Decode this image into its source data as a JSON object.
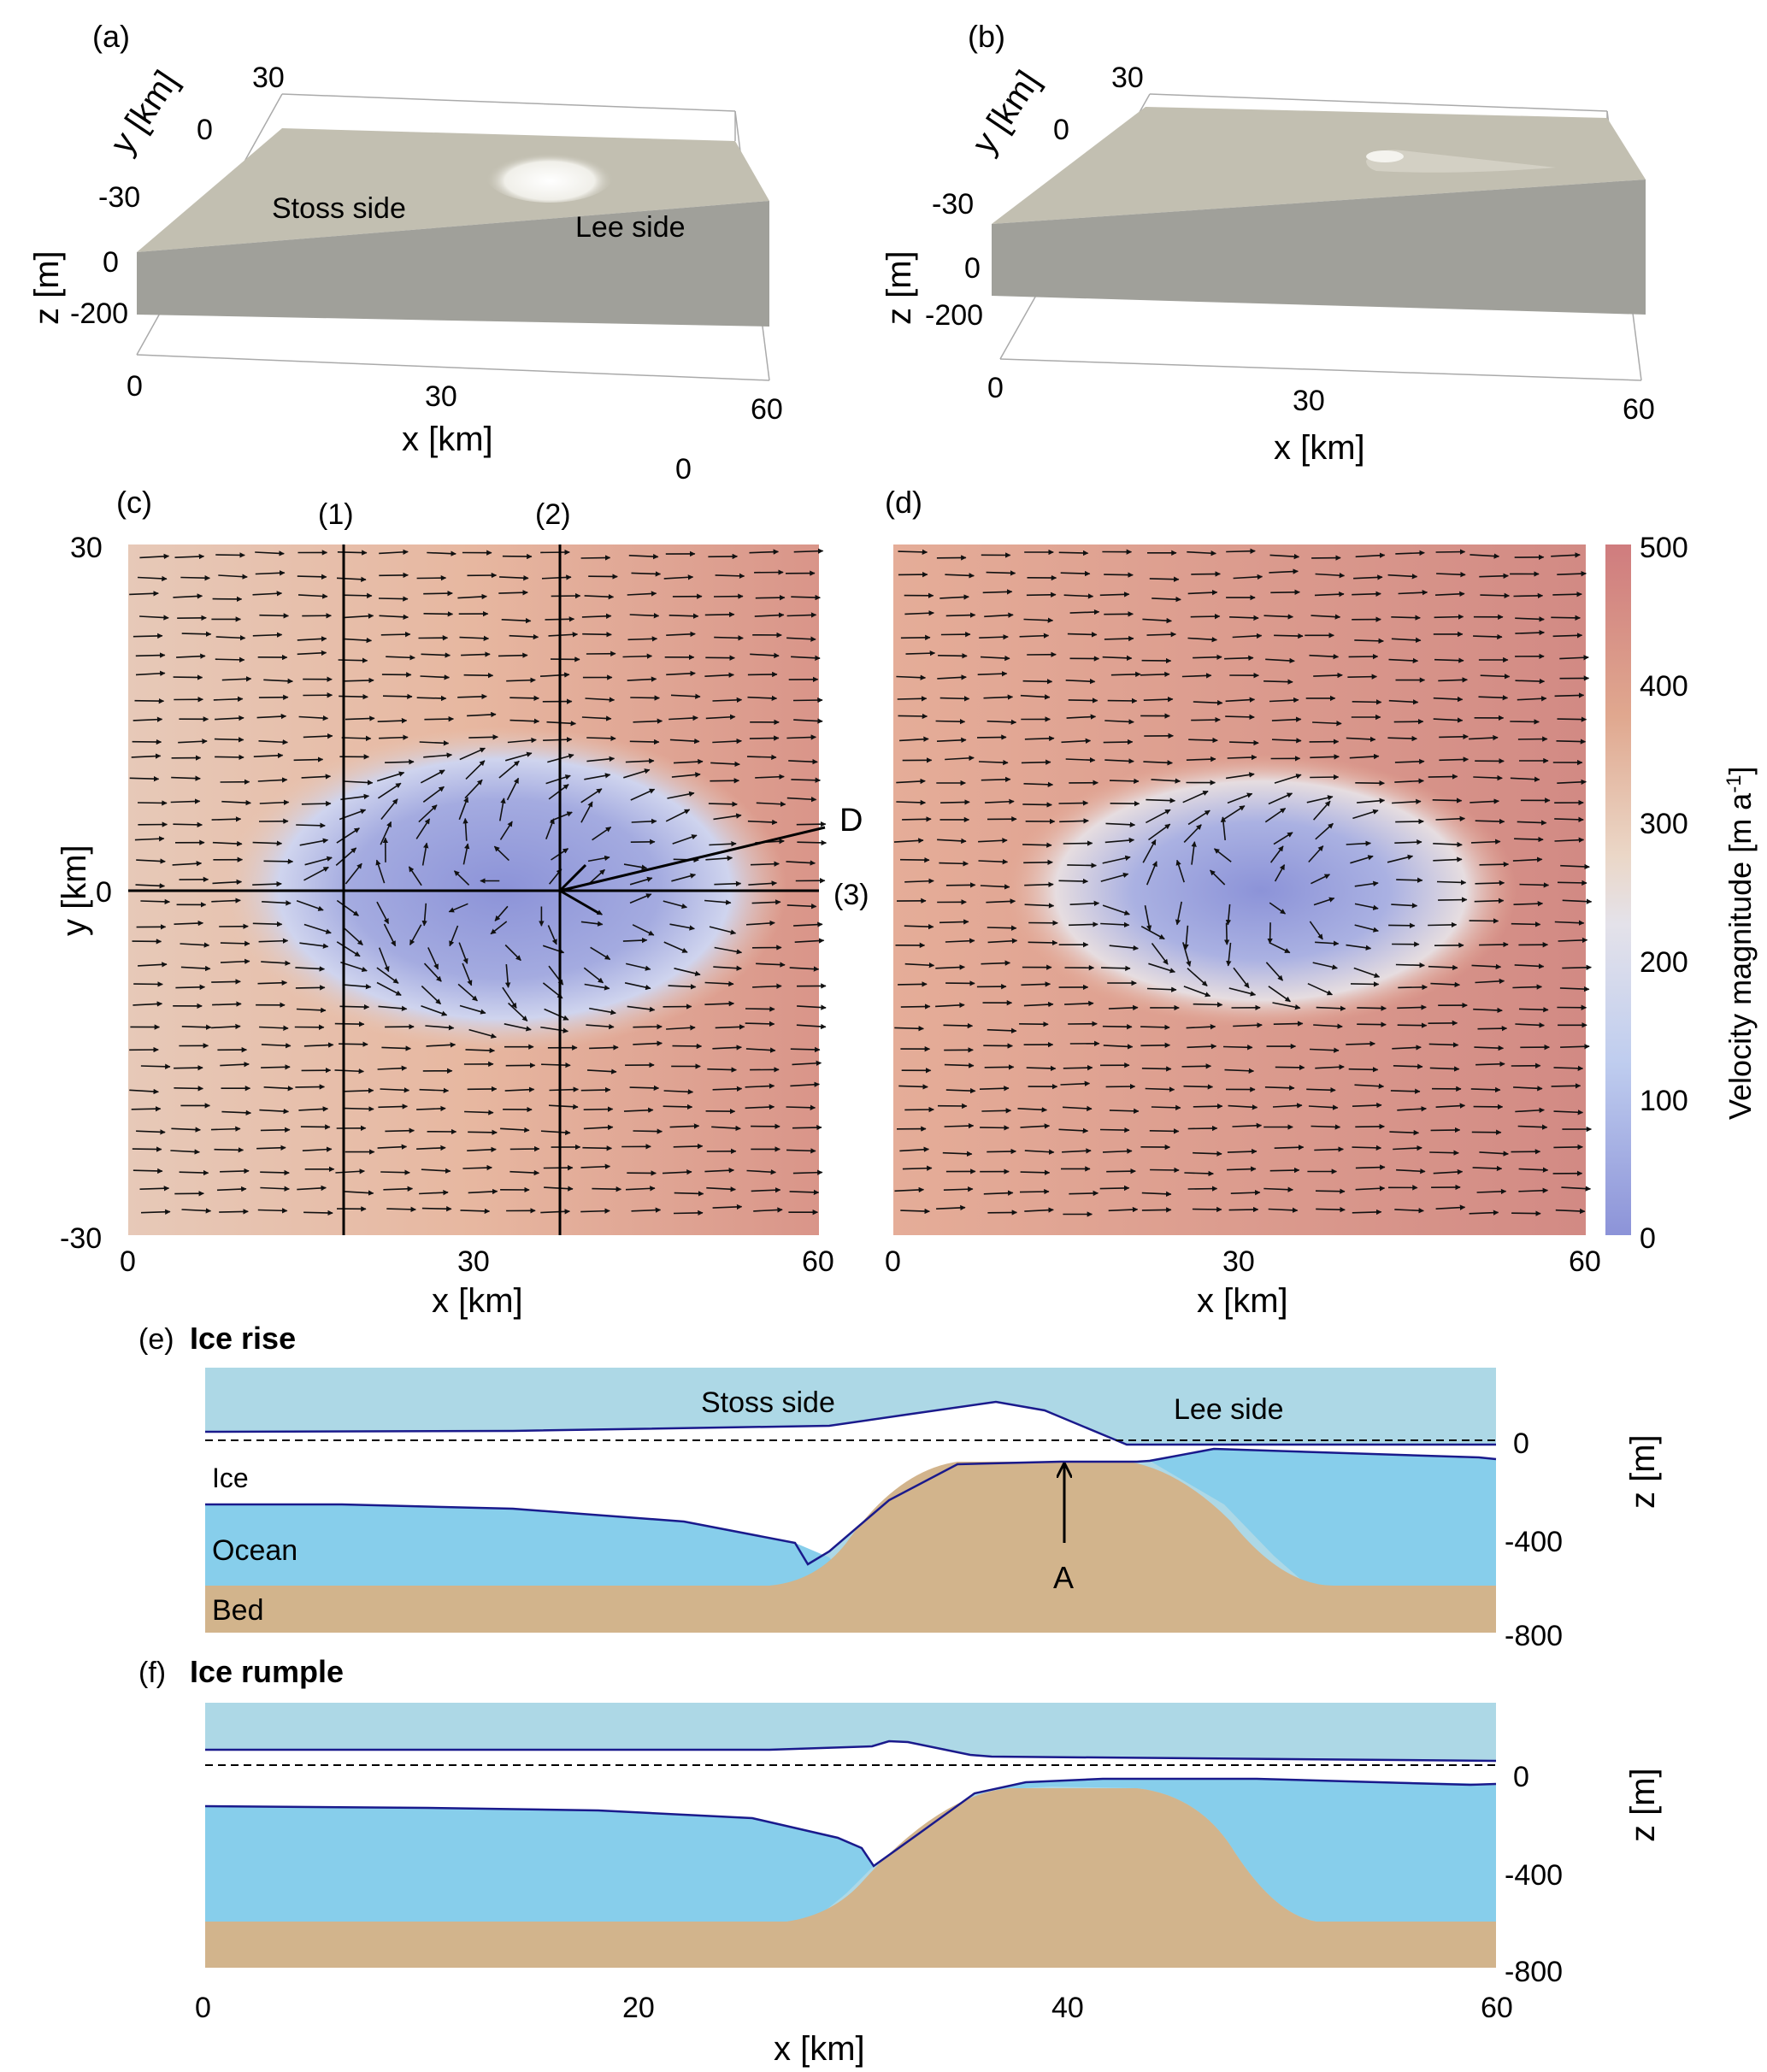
{
  "panel_a": {
    "label": "(a)",
    "axis_y_label": "y [km]",
    "y_ticks": [
      "30",
      "0",
      "-30"
    ],
    "axis_z_label": "z [m]",
    "z_ticks": [
      "0",
      "-200"
    ],
    "axis_x_label": "x [km]",
    "x_ticks": [
      "0",
      "30",
      "60"
    ],
    "extra_tick": "0",
    "stoss_label": "Stoss side",
    "lee_label": "Lee side"
  },
  "panel_b": {
    "label": "(b)",
    "axis_y_label": "y [km]",
    "y_ticks": [
      "30",
      "0",
      "-30"
    ],
    "axis_z_label": "z [m]",
    "z_ticks": [
      "0",
      "-200"
    ],
    "axis_x_label": "x [km]",
    "x_ticks": [
      "0",
      "30",
      "60"
    ]
  },
  "panel_c": {
    "label": "(c)",
    "axis_x_label": "x [km]",
    "axis_y_label": "y [km]",
    "x_ticks": [
      "0",
      "30",
      "60"
    ],
    "y_ticks": [
      "30",
      "0",
      "-30"
    ],
    "line_1_label": "(1)",
    "line_2_label": "(2)",
    "line_3_label": "(3)",
    "d_label": "D"
  },
  "panel_d": {
    "label": "(d)",
    "axis_x_label": "x [km]",
    "x_ticks": [
      "0",
      "30",
      "60"
    ]
  },
  "colorbar": {
    "label": "Velocity magnitude [m a",
    "label_sup": "-1",
    "label_end": "]",
    "ticks": [
      "500",
      "400",
      "300",
      "200",
      "100",
      "0"
    ],
    "colors": {
      "high": "#cf7c7e",
      "mid": "#e8e3e1",
      "low": "#8c93d8"
    }
  },
  "panel_e": {
    "label": "(e)",
    "title": "Ice rise",
    "stoss_label": "Stoss side",
    "lee_label": "Lee side",
    "ice_label": "Ice",
    "ocean_label": "Ocean",
    "bed_label": "Bed",
    "a_label": "A",
    "axis_z_label": "z [m]",
    "z_ticks": [
      "0",
      "-400",
      "-800"
    ]
  },
  "panel_f": {
    "label": "(f)",
    "title": "Ice rumple",
    "axis_z_label": "z [m]",
    "z_ticks": [
      "0",
      "-400",
      "-800"
    ],
    "axis_x_label": "x [km]",
    "x_ticks": [
      "0",
      "20",
      "40",
      "60"
    ]
  },
  "colors": {
    "air": "#add8e6",
    "ocean": "#87ceeb",
    "bed": "#d2b48c",
    "ice": "#ffffff",
    "surface_line": "#1a1a8c",
    "slab_top": "#c2bfb1",
    "slab_side": "#a0a09a"
  }
}
